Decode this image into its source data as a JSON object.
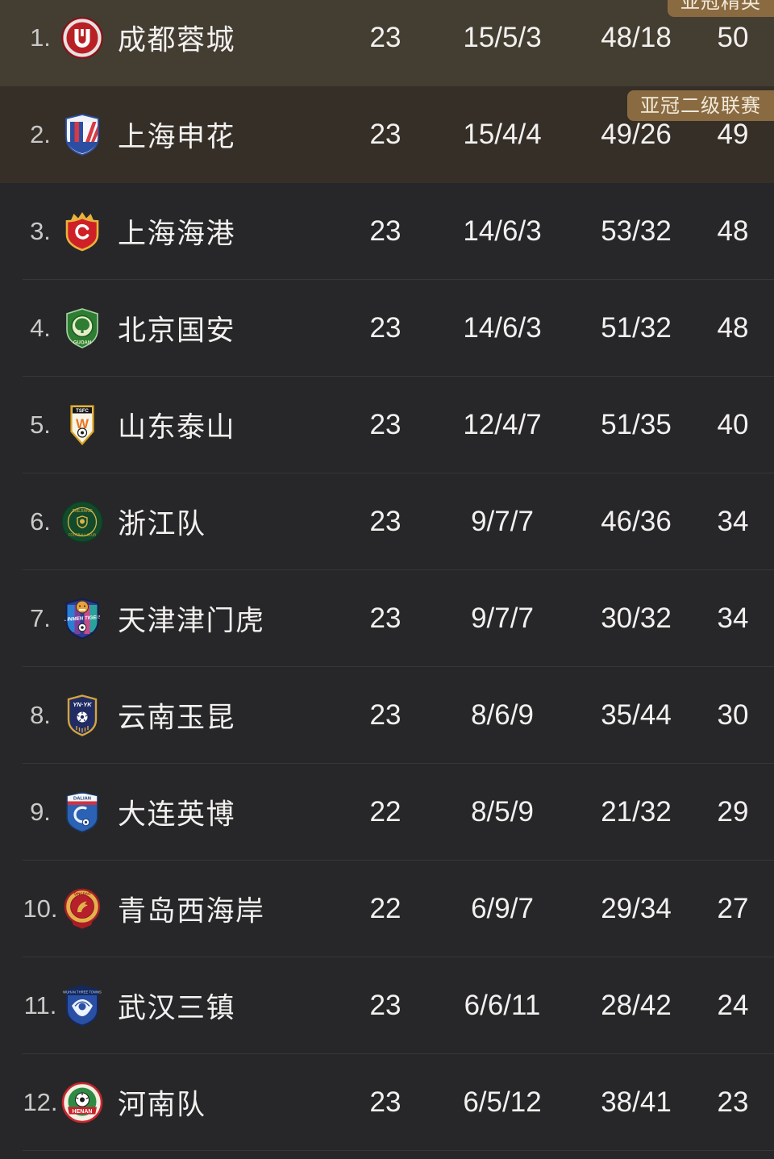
{
  "colors": {
    "badge_gold": "#8a6b41",
    "row1_highlight": "#443d32",
    "row2_highlight": "#362f28",
    "row_dark": "#272729"
  },
  "league_table": {
    "rows": [
      {
        "rank": "1.",
        "team": "成都蓉城",
        "logo": "chengdu-rongcheng-crest",
        "played": "23",
        "record": "15/5/3",
        "goals": "48/18",
        "points": "50",
        "badge": "亚冠精英"
      },
      {
        "rank": "2.",
        "team": "上海申花",
        "logo": "shanghai-shenhua-crest",
        "played": "23",
        "record": "15/4/4",
        "goals": "49/26",
        "points": "49",
        "badge": "亚冠二级联赛"
      },
      {
        "rank": "3.",
        "team": "上海海港",
        "logo": "shanghai-port-crest",
        "played": "23",
        "record": "14/6/3",
        "goals": "53/32",
        "points": "48"
      },
      {
        "rank": "4.",
        "team": "北京国安",
        "logo": "beijing-guoan-crest",
        "played": "23",
        "record": "14/6/3",
        "goals": "51/32",
        "points": "48"
      },
      {
        "rank": "5.",
        "team": "山东泰山",
        "logo": "shandong-taishan-crest",
        "played": "23",
        "record": "12/4/7",
        "goals": "51/35",
        "points": "40"
      },
      {
        "rank": "6.",
        "team": "浙江队",
        "logo": "zhejiang-fc-crest",
        "played": "23",
        "record": "9/7/7",
        "goals": "46/36",
        "points": "34"
      },
      {
        "rank": "7.",
        "team": "天津津门虎",
        "logo": "tianjin-jinmen-tiger-crest",
        "played": "23",
        "record": "9/7/7",
        "goals": "30/32",
        "points": "34"
      },
      {
        "rank": "8.",
        "team": "云南玉昆",
        "logo": "yunnan-yukun-crest",
        "played": "23",
        "record": "8/6/9",
        "goals": "35/44",
        "points": "30"
      },
      {
        "rank": "9.",
        "team": "大连英博",
        "logo": "dalian-yingbo-crest",
        "played": "22",
        "record": "8/5/9",
        "goals": "21/32",
        "points": "29"
      },
      {
        "rank": "10.",
        "team": "青岛西海岸",
        "logo": "qingdao-west-coast-crest",
        "played": "22",
        "record": "6/9/7",
        "goals": "29/34",
        "points": "27"
      },
      {
        "rank": "11.",
        "team": "武汉三镇",
        "logo": "wuhan-three-towns-crest",
        "played": "23",
        "record": "6/6/11",
        "goals": "28/42",
        "points": "24"
      },
      {
        "rank": "12.",
        "team": "河南队",
        "logo": "henan-fc-crest",
        "played": "23",
        "record": "6/5/12",
        "goals": "38/41",
        "points": "23"
      }
    ]
  }
}
